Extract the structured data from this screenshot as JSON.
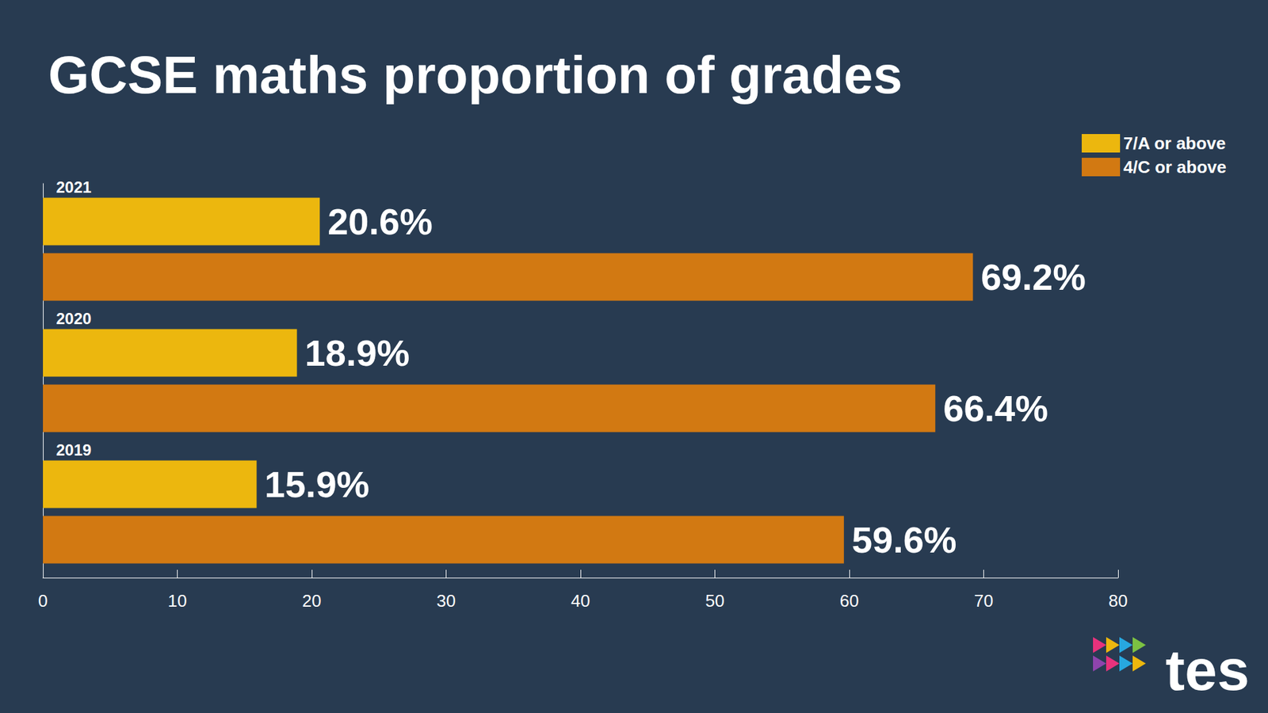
{
  "chart_data": {
    "type": "bar",
    "orientation": "horizontal",
    "title": "GCSE maths proportion of grades",
    "categories": [
      "2021",
      "2020",
      "2019"
    ],
    "series": [
      {
        "name": "7/A or above",
        "color": "#ecb70e",
        "values": [
          20.6,
          18.9,
          15.9
        ],
        "value_labels": [
          "20.6%",
          "18.9%",
          "15.9%"
        ]
      },
      {
        "name": "4/C or above",
        "color": "#d27912",
        "values": [
          69.2,
          66.4,
          59.6
        ],
        "value_labels": [
          "69.2%",
          "66.4%",
          "59.6%"
        ]
      }
    ],
    "xlim": [
      0,
      80
    ],
    "xticks": [
      0,
      10,
      20,
      30,
      40,
      50,
      60,
      70,
      80
    ],
    "grid": false,
    "legend": "upper right",
    "data_labels": true,
    "annotations": [
      "tes"
    ]
  }
}
